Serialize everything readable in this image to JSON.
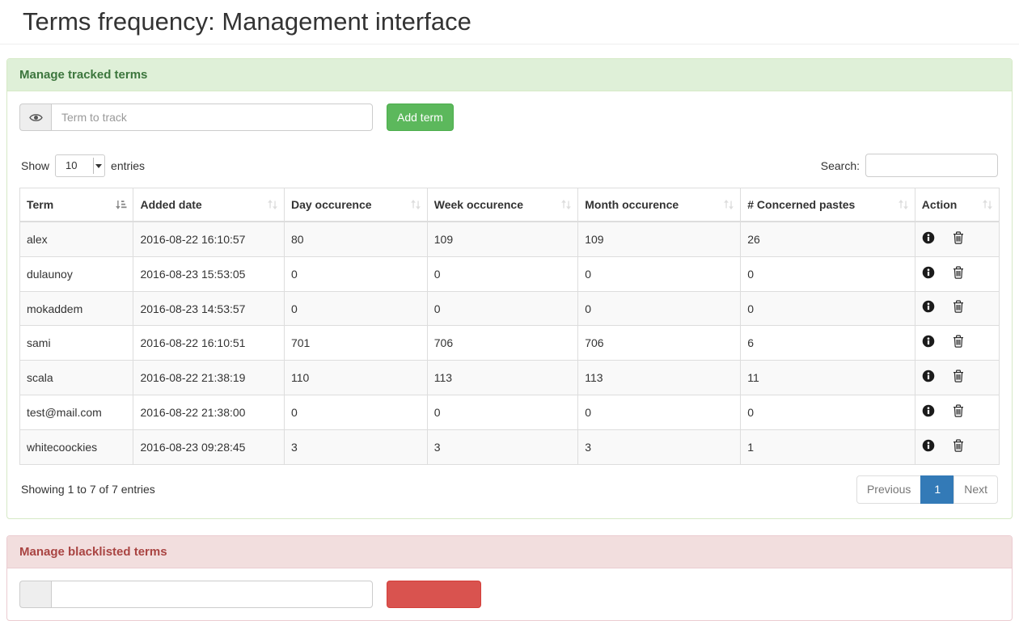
{
  "page_title": "Terms frequency: Management interface",
  "tracked": {
    "panel_title": "Manage tracked terms",
    "term_input_placeholder": "Term to track",
    "term_addon_icon": "eye-icon",
    "add_button_label": "Add term",
    "length_control": {
      "show_label": "Show",
      "selected": "10",
      "entries_label": "entries"
    },
    "search": {
      "label": "Search:",
      "value": ""
    },
    "table": {
      "columns": [
        {
          "label": "Term",
          "sort": "ascending"
        },
        {
          "label": "Added date",
          "sort": "none"
        },
        {
          "label": "Day occurence",
          "sort": "none"
        },
        {
          "label": "Week occurence",
          "sort": "none"
        },
        {
          "label": "Month occurence",
          "sort": "none"
        },
        {
          "label": "# Concerned pastes",
          "sort": "none"
        },
        {
          "label": "Action",
          "sort": "none"
        }
      ],
      "cell_names": [
        "term",
        "added-date",
        "day-occurence",
        "week-occurence",
        "month-occurence",
        "concerned-pastes"
      ],
      "rows": [
        [
          "alex",
          "2016-08-22 16:10:57",
          "80",
          "109",
          "109",
          "26"
        ],
        [
          "dulaunoy",
          "2016-08-23 15:53:05",
          "0",
          "0",
          "0",
          "0"
        ],
        [
          "mokaddem",
          "2016-08-23 14:53:57",
          "0",
          "0",
          "0",
          "0"
        ],
        [
          "sami",
          "2016-08-22 16:10:51",
          "701",
          "706",
          "706",
          "6"
        ],
        [
          "scala",
          "2016-08-22 21:38:19",
          "110",
          "113",
          "113",
          "11"
        ],
        [
          "test@mail.com",
          "2016-08-22 21:38:00",
          "0",
          "0",
          "0",
          "0"
        ],
        [
          "whitecoockies",
          "2016-08-23 09:28:45",
          "3",
          "3",
          "3",
          "1"
        ]
      ],
      "action_icons": [
        "info-circle-icon",
        "trash-icon"
      ]
    },
    "info_text": "Showing 1 to 7 of 7 entries",
    "pagination": {
      "previous_label": "Previous",
      "active_page": "1",
      "next_label": "Next"
    }
  },
  "blacklist": {
    "panel_title": "Manage blacklisted terms"
  },
  "colors": {
    "success_heading_bg": "#dff0d8",
    "success_border": "#d6e9c6",
    "success_text": "#3c763d",
    "success_button": "#5cb85c",
    "danger_heading_bg": "#f2dede",
    "danger_border": "#ebccd1",
    "danger_text": "#a94442",
    "danger_button": "#d9534f",
    "pagination_active": "#337ab7",
    "table_border": "#dddddd",
    "stripe_row_bg": "#f9f9f9"
  }
}
